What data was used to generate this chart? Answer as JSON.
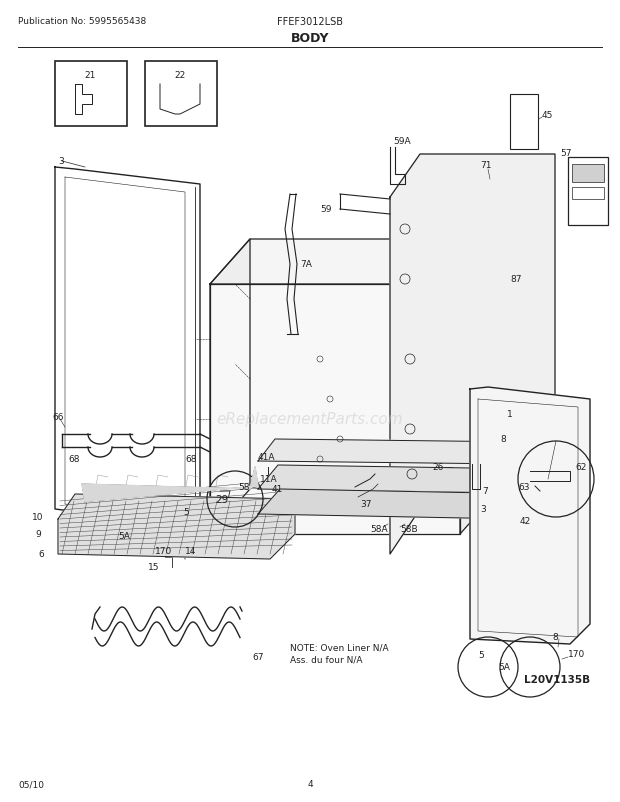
{
  "title": "BODY",
  "pub_no": "Publication No: 5995565438",
  "model": "FFEF3012LSB",
  "footer_left": "05/10",
  "footer_center": "4",
  "watermark": "eReplacementParts.com",
  "logo": "L20V1135B",
  "note_line1": "NOTE: Oven Liner N/A",
  "note_line2": "Ass. du four N/A",
  "bg_color": "#ffffff",
  "line_color": "#222222",
  "label_fontsize": 6.5,
  "title_fontsize": 9,
  "header_fontsize": 6.5,
  "watermark_color": "#c8c8c8",
  "fig_width": 6.2,
  "fig_height": 8.03,
  "dpi": 100
}
